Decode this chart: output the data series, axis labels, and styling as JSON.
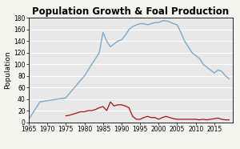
{
  "title": "Population Growth & Foal Production",
  "ylabel": "Population",
  "xlim": [
    1965,
    2020
  ],
  "ylim": [
    0,
    180
  ],
  "yticks": [
    0,
    20,
    40,
    60,
    80,
    100,
    120,
    140,
    160,
    180
  ],
  "xticks": [
    1965,
    1970,
    1975,
    1980,
    1985,
    1990,
    1995,
    2000,
    2005,
    2010,
    2015
  ],
  "background_color": "#e8e8e8",
  "fig_background": "#f5f5f0",
  "population_color": "#7aaacc",
  "foal_color": "#aa1111",
  "population_data": {
    "years": [
      1965,
      1968,
      1975,
      1976,
      1978,
      1980,
      1982,
      1984,
      1985,
      1986,
      1987,
      1988,
      1989,
      1990,
      1991,
      1992,
      1993,
      1994,
      1995,
      1996,
      1997,
      1998,
      1999,
      2000,
      2001,
      2002,
      2003,
      2004,
      2005,
      2006,
      2007,
      2008,
      2009,
      2010,
      2011,
      2012,
      2013,
      2014,
      2015,
      2016,
      2017,
      2018,
      2019
    ],
    "values": [
      5,
      35,
      42,
      50,
      65,
      80,
      100,
      120,
      155,
      140,
      130,
      135,
      140,
      142,
      150,
      160,
      165,
      168,
      170,
      170,
      168,
      170,
      172,
      172,
      175,
      175,
      173,
      170,
      168,
      155,
      140,
      130,
      120,
      115,
      110,
      100,
      95,
      90,
      85,
      90,
      88,
      80,
      75
    ]
  },
  "foal_data": {
    "years": [
      1975,
      1976,
      1977,
      1978,
      1979,
      1980,
      1981,
      1982,
      1983,
      1984,
      1985,
      1986,
      1987,
      1988,
      1989,
      1990,
      1991,
      1992,
      1993,
      1994,
      1995,
      1996,
      1997,
      1998,
      1999,
      2000,
      2001,
      2002,
      2003,
      2004,
      2005,
      2006,
      2007,
      2008,
      2009,
      2010,
      2011,
      2012,
      2013,
      2014,
      2015,
      2016,
      2017,
      2018,
      2019
    ],
    "values": [
      11,
      12,
      14,
      16,
      18,
      18,
      20,
      20,
      22,
      25,
      27,
      20,
      35,
      28,
      30,
      30,
      28,
      25,
      10,
      5,
      5,
      8,
      10,
      8,
      8,
      5,
      8,
      10,
      8,
      6,
      5,
      5,
      5,
      5,
      5,
      5,
      4,
      5,
      4,
      5,
      6,
      7,
      5,
      4,
      4
    ]
  },
  "title_fontsize": 8.5,
  "label_fontsize": 6.5,
  "tick_fontsize": 5.5
}
